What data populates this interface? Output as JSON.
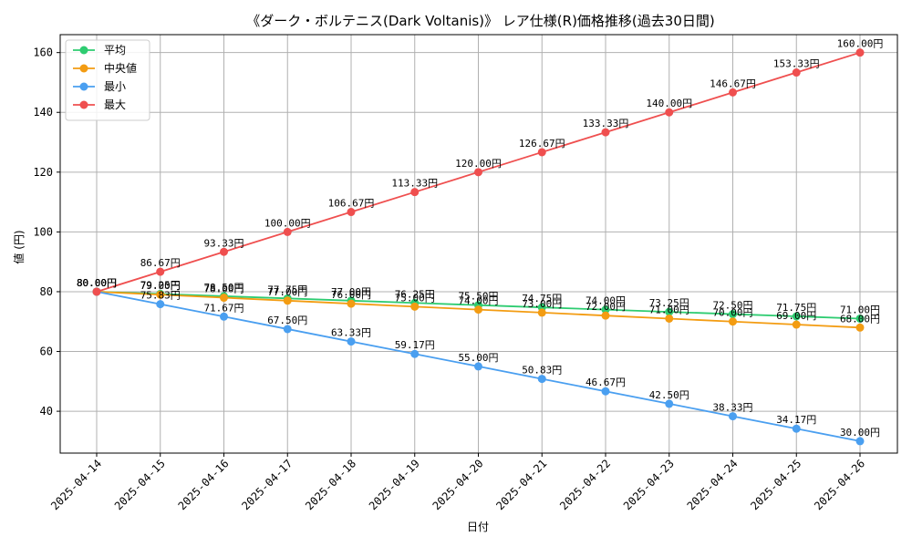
{
  "chart_data": {
    "type": "line",
    "title": "《ダーク・ボルテニス(Dark Voltanis)》 レア仕様(R)価格推移(過去30日間)",
    "xlabel": "日付",
    "ylabel": "値 (円)",
    "x": [
      "2025-04-14",
      "2025-04-15",
      "2025-04-16",
      "2025-04-17",
      "2025-04-18",
      "2025-04-19",
      "2025-04-20",
      "2025-04-21",
      "2025-04-22",
      "2025-04-23",
      "2025-04-24",
      "2025-04-25",
      "2025-04-26"
    ],
    "ylim": [
      26,
      166
    ],
    "yticks": [
      40,
      60,
      80,
      100,
      120,
      140,
      160
    ],
    "grid": true,
    "legend_position": "top-left",
    "value_suffix": "円",
    "series": [
      {
        "name": "平均",
        "color": "#2ecc71",
        "values": [
          80.0,
          79.25,
          78.5,
          77.75,
          77.0,
          76.25,
          75.5,
          74.75,
          74.0,
          73.25,
          72.5,
          71.75,
          71.0
        ]
      },
      {
        "name": "中央値",
        "color": "#f39c12",
        "values": [
          80.0,
          79.0,
          78.0,
          77.0,
          76.0,
          75.0,
          74.0,
          73.0,
          72.0,
          71.0,
          70.0,
          69.0,
          68.0
        ]
      },
      {
        "name": "最小",
        "color": "#4a9ff0",
        "values": [
          80.0,
          75.83,
          71.67,
          67.5,
          63.33,
          59.17,
          55.0,
          50.83,
          46.67,
          42.5,
          38.33,
          34.17,
          30.0
        ]
      },
      {
        "name": "最大",
        "color": "#ef4f4f",
        "values": [
          80.0,
          86.67,
          93.33,
          100.0,
          106.67,
          113.33,
          120.0,
          126.67,
          133.33,
          140.0,
          146.67,
          153.33,
          160.0
        ]
      }
    ]
  }
}
